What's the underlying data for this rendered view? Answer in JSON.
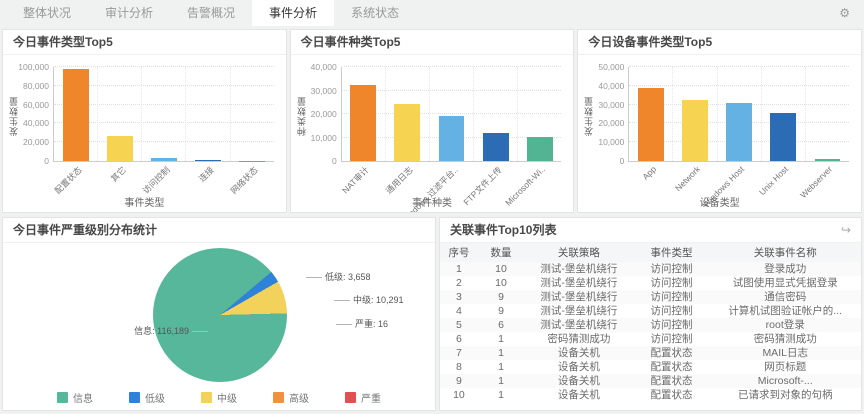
{
  "tabs": {
    "items": [
      {
        "label": "整体状况",
        "active": false
      },
      {
        "label": "审计分析",
        "active": false
      },
      {
        "label": "告警概况",
        "active": false
      },
      {
        "label": "事件分析",
        "active": true
      },
      {
        "label": "系统状态",
        "active": false
      }
    ],
    "gear_icon": "⚙"
  },
  "chart_data": [
    {
      "type": "bar",
      "title": "今日事件类型Top5",
      "categories": [
        "配置状态",
        "其它",
        "访问控制",
        "连接",
        "网络状态"
      ],
      "values": [
        98000,
        27000,
        2800,
        1300,
        200
      ],
      "bar_colors": [
        "#F0862B",
        "#F6D351",
        "#64B1E4",
        "#2B6CB5",
        "#52B493"
      ],
      "xlabel": "事件类型",
      "ylabel": "发生数量",
      "ylim": [
        0,
        100000
      ],
      "ytick_step": 20000,
      "grid": true,
      "legend_position": "none"
    },
    {
      "type": "bar",
      "title": "今日事件种类Top5",
      "categories": [
        "NAT审计",
        "通用日志",
        "Windows 过滤平台..",
        "FTP文件上传",
        "Microsoft-Wi.."
      ],
      "values": [
        32200,
        24300,
        19200,
        11800,
        10100
      ],
      "bar_colors": [
        "#F0862B",
        "#F6D351",
        "#64B1E4",
        "#2B6CB5",
        "#52B493"
      ],
      "xlabel": "事件种类",
      "ylabel": "种类数量",
      "ylim": [
        0,
        40000
      ],
      "ytick_step": 10000,
      "grid": true,
      "legend_position": "none"
    },
    {
      "type": "bar",
      "title": "今日设备事件类型Top5",
      "categories": [
        "App",
        "Network",
        "Windows Host",
        "Unix Host",
        "Webserver"
      ],
      "values": [
        38800,
        32300,
        31000,
        25500,
        1000
      ],
      "bar_colors": [
        "#F0862B",
        "#F6D351",
        "#64B1E4",
        "#2B6CB5",
        "#52B493"
      ],
      "xlabel": "设备类型",
      "ylabel": "发生数量",
      "ylim": [
        0,
        50000
      ],
      "ytick_step": 10000,
      "grid": true,
      "legend_position": "none"
    },
    {
      "type": "pie",
      "title": "今日事件严重级别分布统计",
      "start_angle_deg": 50,
      "slices": [
        {
          "name": "低级",
          "value": 3658,
          "color": "#2E83D9",
          "label": "低级: 3,658"
        },
        {
          "name": "中级",
          "value": 10291,
          "color": "#F2D25A",
          "label": "中级: 10,291"
        },
        {
          "name": "严重",
          "value": 16,
          "color": "#E05252",
          "label": "严重: 16"
        },
        {
          "name": "信息",
          "value": 116189,
          "color": "#57B79B",
          "label": "信息: 116,189"
        }
      ],
      "legend": [
        {
          "name": "信息",
          "color": "#57B79B"
        },
        {
          "name": "低级",
          "color": "#2E83D9"
        },
        {
          "name": "中级",
          "color": "#F2D25A"
        },
        {
          "name": "高级",
          "color": "#F0913F"
        },
        {
          "name": "严重",
          "color": "#E05252"
        }
      ],
      "legend_position": "bottom"
    }
  ],
  "table": {
    "title": "关联事件Top10列表",
    "action_icon": "↪",
    "columns": [
      "序号",
      "数量",
      "关联策略",
      "事件类型",
      "关联事件名称"
    ],
    "rows": [
      [
        "1",
        "10",
        "测试-堡垒机绕行",
        "访问控制",
        "登录成功"
      ],
      [
        "2",
        "10",
        "测试-堡垒机绕行",
        "访问控制",
        "试图使用显式凭据登录"
      ],
      [
        "3",
        "9",
        "测试-堡垒机绕行",
        "访问控制",
        "通信密码"
      ],
      [
        "4",
        "9",
        "测试-堡垒机绕行",
        "访问控制",
        "计算机试图验证帐户的..."
      ],
      [
        "5",
        "6",
        "测试-堡垒机绕行",
        "访问控制",
        "root登录"
      ],
      [
        "6",
        "1",
        "密码猜测成功",
        "访问控制",
        "密码猜测成功"
      ],
      [
        "7",
        "1",
        "设备关机",
        "配置状态",
        "MAIL日志"
      ],
      [
        "8",
        "1",
        "设备关机",
        "配置状态",
        "网页标题"
      ],
      [
        "9",
        "1",
        "设备关机",
        "配置状态",
        "Microsoft-..."
      ],
      [
        "10",
        "1",
        "设备关机",
        "配置状态",
        "已请求到对象的句柄"
      ]
    ]
  }
}
